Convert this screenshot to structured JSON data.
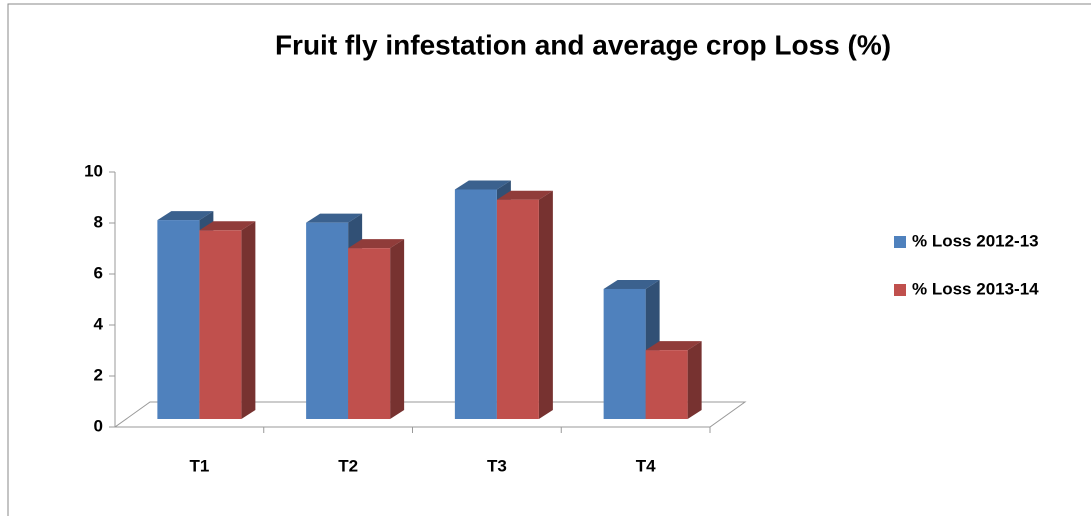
{
  "chart_data": {
    "type": "bar3d",
    "title": "Fruit fly infestation and average crop Loss (%)",
    "categories": [
      "T1",
      "T2",
      "T3",
      "T4"
    ],
    "series": [
      {
        "name": "% Loss 2012-13",
        "color": "#4f81bd",
        "values": [
          7.8,
          7.7,
          9.0,
          5.1
        ]
      },
      {
        "name": "% Loss 2013-14",
        "color": "#c0504d",
        "values": [
          7.4,
          6.7,
          8.6,
          2.7
        ]
      }
    ],
    "ylim": [
      0,
      10
    ],
    "yticks": [
      0,
      2,
      4,
      6,
      8,
      10
    ],
    "legend": "right"
  }
}
